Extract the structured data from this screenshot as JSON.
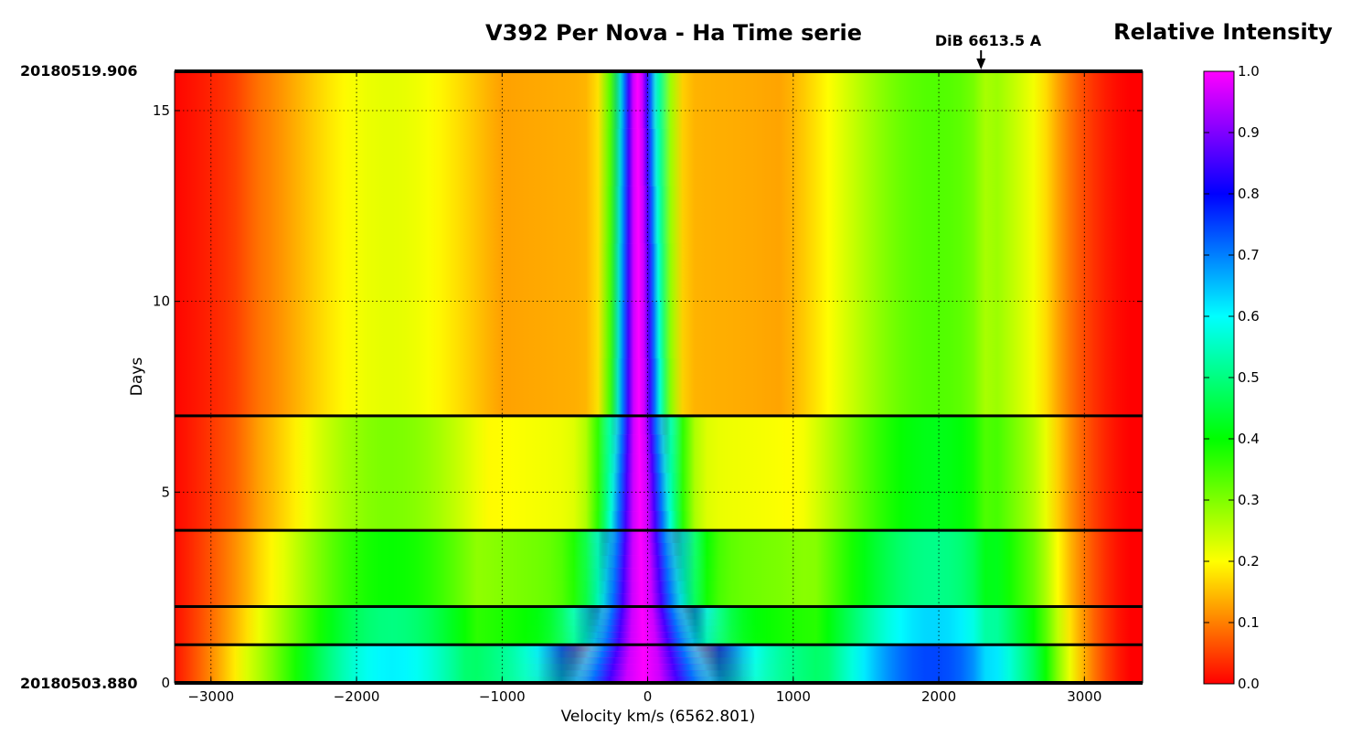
{
  "chart_data": {
    "type": "heatmap",
    "title": "V392 Per  Nova - Ha Time serie",
    "colorbar_title": "Relative Intensity",
    "xlabel": "Velocity km/s (6562.801)",
    "ylabel": "Days",
    "xlim": [
      -3250,
      3400
    ],
    "ylim": [
      0,
      16.03
    ],
    "x_ticks": [
      -3000,
      -2000,
      -1000,
      0,
      1000,
      2000,
      3000
    ],
    "y_ticks": [
      0,
      5,
      10,
      15
    ],
    "colorbar_range": [
      0.0,
      1.0
    ],
    "colorbar_ticks": [
      "0.0",
      "0.1",
      "0.2",
      "0.3",
      "0.4",
      "0.5",
      "0.6",
      "0.7",
      "0.8",
      "0.9",
      "1.0"
    ],
    "colormap": [
      "#ff0000",
      "#ffff00",
      "#00ff00",
      "#00ffff",
      "#0000ff",
      "#ff00ff"
    ],
    "grid": true,
    "date_start": "20180503.880",
    "date_end": "20180519.906",
    "observation_days": [
      0,
      1.0,
      2.0,
      4.0,
      7.0,
      16.03
    ],
    "annotation": {
      "text": "DiB 6613.5 A",
      "x": 2290
    },
    "profiles": [
      {
        "day": 0,
        "peak_center": -30,
        "fwhm": 820,
        "continuum_level": 0.55,
        "left_bump": 0.45,
        "right_bump": 0.6
      },
      {
        "day": 1.0,
        "peak_center": -30,
        "fwhm": 600,
        "continuum_level": 0.42,
        "left_bump": 0.38,
        "right_bump": 0.52
      },
      {
        "day": 2.0,
        "peak_center": -40,
        "fwhm": 470,
        "continuum_level": 0.33,
        "left_bump": 0.3,
        "right_bump": 0.42
      },
      {
        "day": 4.0,
        "peak_center": -50,
        "fwhm": 360,
        "continuum_level": 0.22,
        "left_bump": 0.24,
        "right_bump": 0.36
      },
      {
        "day": 7.0,
        "peak_center": -60,
        "fwhm": 260,
        "continuum_level": 0.14,
        "left_bump": 0.18,
        "right_bump": 0.3
      },
      {
        "day": 16.03,
        "peak_center": -70,
        "fwhm": 210,
        "continuum_level": 0.1,
        "left_bump": 0.17,
        "right_bump": 0.31
      }
    ]
  }
}
